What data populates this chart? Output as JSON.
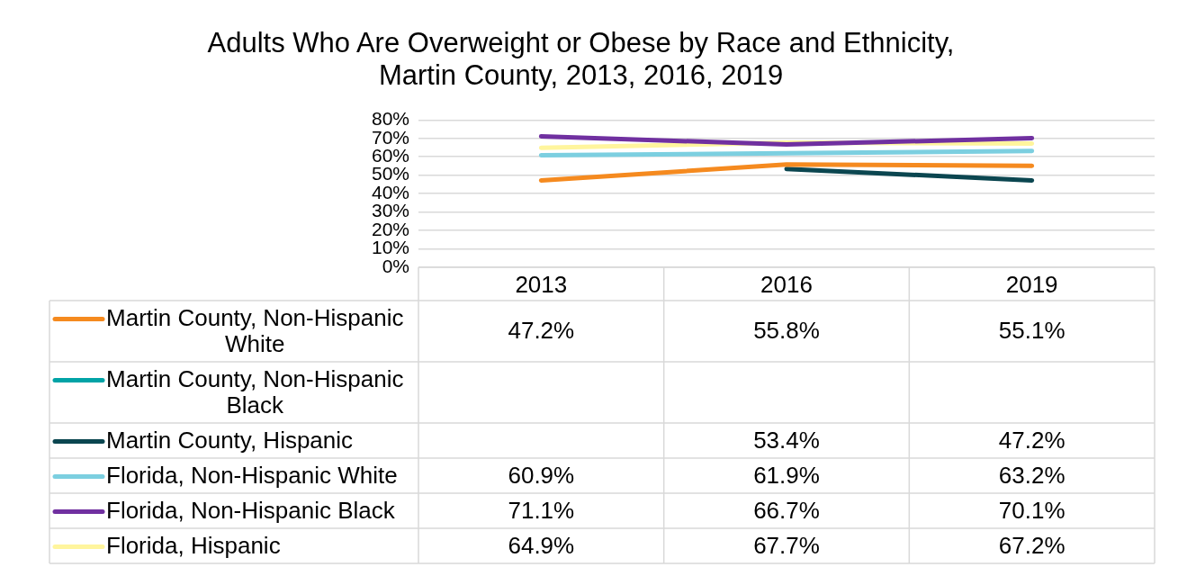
{
  "chart_data": {
    "type": "line",
    "title": "Adults Who Are Overweight or Obese by Race and Ethnicity, Martin County, 2013, 2016, 2019",
    "categories": [
      "2013",
      "2016",
      "2019"
    ],
    "ylim": [
      0,
      80
    ],
    "yticks": [
      {
        "value": 0,
        "label": "0%"
      },
      {
        "value": 10,
        "label": "10%"
      },
      {
        "value": 20,
        "label": "20%"
      },
      {
        "value": 30,
        "label": "30%"
      },
      {
        "value": 40,
        "label": "40%"
      },
      {
        "value": 50,
        "label": "50%"
      },
      {
        "value": 60,
        "label": "60%"
      },
      {
        "value": 70,
        "label": "70%"
      },
      {
        "value": 80,
        "label": "80%"
      }
    ],
    "grid": "y",
    "legend": "bottom",
    "marker": "none",
    "line_style": "solid",
    "series": [
      {
        "name": "Martin County, Non-Hispanic White",
        "color": "#f58a1f",
        "values": [
          47.2,
          55.8,
          55.1
        ],
        "value_labels": [
          "47.2%",
          "55.8%",
          "55.1%"
        ]
      },
      {
        "name": "Martin County, Non-Hispanic Black",
        "color": "#00a3a6",
        "values": [
          null,
          null,
          null
        ],
        "value_labels": [
          null,
          null,
          null
        ]
      },
      {
        "name": "Martin County, Hispanic",
        "color": "#0b4650",
        "values": [
          null,
          53.4,
          47.2
        ],
        "value_labels": [
          null,
          "53.4%",
          "47.2%"
        ]
      },
      {
        "name": "Florida, Non-Hispanic White",
        "color": "#7ccfe0",
        "values": [
          60.9,
          61.9,
          63.2
        ],
        "value_labels": [
          "60.9%",
          "61.9%",
          "63.2%"
        ]
      },
      {
        "name": "Florida, Non-Hispanic Black",
        "color": "#7030a0",
        "values": [
          71.1,
          66.7,
          70.1
        ],
        "value_labels": [
          "71.1%",
          "66.7%",
          "70.1%"
        ]
      },
      {
        "name": "Florida, Hispanic",
        "color": "#fff59d",
        "values": [
          64.9,
          67.7,
          67.2
        ],
        "value_labels": [
          "64.9%",
          "67.7%",
          "67.2%"
        ]
      }
    ]
  }
}
